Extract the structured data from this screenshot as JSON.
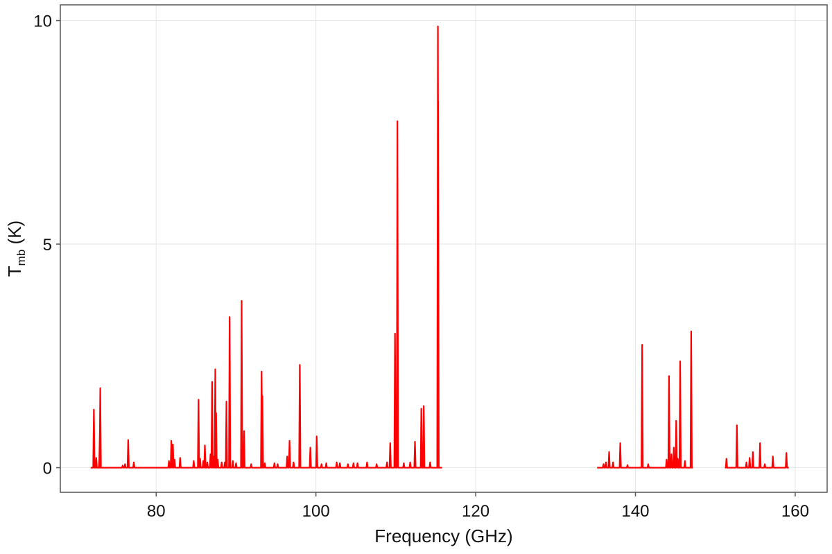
{
  "chart_data": {
    "type": "line",
    "title": "",
    "xlabel": "Frequency (GHz)",
    "ylabel": {
      "main": "T",
      "sub": "mb",
      "unit": " (K)"
    },
    "xlim": [
      68,
      164
    ],
    "ylim": [
      -0.55,
      10.35
    ],
    "x_ticks": [
      80,
      100,
      120,
      140,
      160
    ],
    "y_ticks": [
      0,
      5,
      10
    ],
    "x_tick_labels": [
      "80",
      "100",
      "120",
      "140",
      "160"
    ],
    "y_tick_labels": [
      "0",
      "5",
      "10"
    ],
    "grid": true,
    "color": "#ff0000",
    "segments": [
      [
        71.8,
        115.8
      ],
      [
        135.2,
        147.2
      ],
      [
        151.2,
        159.2
      ]
    ],
    "lines": [
      [
        72.2,
        1.3
      ],
      [
        72.5,
        0.22
      ],
      [
        72.9,
        0.25
      ],
      [
        73.0,
        1.78
      ],
      [
        72.95,
        0.8
      ],
      [
        75.8,
        0.05
      ],
      [
        76.1,
        0.08
      ],
      [
        76.5,
        0.62
      ],
      [
        77.2,
        0.12
      ],
      [
        81.6,
        0.15
      ],
      [
        81.9,
        0.6
      ],
      [
        82.1,
        0.52
      ],
      [
        82.3,
        0.18
      ],
      [
        83.0,
        0.22
      ],
      [
        84.7,
        0.15
      ],
      [
        85.3,
        1.52
      ],
      [
        85.5,
        0.2
      ],
      [
        85.9,
        0.15
      ],
      [
        86.1,
        0.5
      ],
      [
        86.4,
        0.12
      ],
      [
        86.8,
        0.3
      ],
      [
        87.0,
        1.92
      ],
      [
        87.2,
        0.25
      ],
      [
        87.4,
        2.2
      ],
      [
        87.5,
        1.22
      ],
      [
        87.7,
        0.18
      ],
      [
        88.2,
        0.12
      ],
      [
        88.6,
        0.12
      ],
      [
        88.8,
        1.48
      ],
      [
        89.2,
        3.37
      ],
      [
        89.6,
        0.15
      ],
      [
        90.0,
        0.1
      ],
      [
        90.7,
        3.73
      ],
      [
        91.0,
        0.82
      ],
      [
        91.9,
        0.08
      ],
      [
        93.2,
        2.15
      ],
      [
        93.3,
        1.6
      ],
      [
        93.6,
        0.1
      ],
      [
        94.8,
        0.1
      ],
      [
        95.2,
        0.08
      ],
      [
        96.4,
        0.25
      ],
      [
        96.7,
        0.6
      ],
      [
        97.2,
        0.12
      ],
      [
        97.98,
        2.3
      ],
      [
        99.3,
        0.45
      ],
      [
        100.1,
        0.7
      ],
      [
        100.7,
        0.08
      ],
      [
        101.3,
        0.1
      ],
      [
        102.6,
        0.12
      ],
      [
        103.0,
        0.1
      ],
      [
        104.0,
        0.08
      ],
      [
        104.7,
        0.1
      ],
      [
        105.2,
        0.1
      ],
      [
        106.4,
        0.12
      ],
      [
        107.6,
        0.08
      ],
      [
        108.9,
        0.12
      ],
      [
        109.3,
        0.55
      ],
      [
        109.9,
        3.0
      ],
      [
        110.2,
        7.75
      ],
      [
        111.0,
        0.1
      ],
      [
        111.8,
        0.12
      ],
      [
        112.4,
        0.58
      ],
      [
        113.2,
        1.32
      ],
      [
        113.5,
        1.38
      ],
      [
        114.3,
        0.12
      ],
      [
        115.27,
        9.87
      ],
      [
        115.3,
        8.2
      ],
      [
        136.0,
        0.08
      ],
      [
        136.3,
        0.12
      ],
      [
        136.7,
        0.35
      ],
      [
        137.2,
        0.12
      ],
      [
        138.1,
        0.55
      ],
      [
        139.0,
        0.06
      ],
      [
        140.84,
        2.75
      ],
      [
        141.6,
        0.08
      ],
      [
        143.9,
        0.18
      ],
      [
        144.2,
        2.05
      ],
      [
        144.5,
        0.3
      ],
      [
        144.8,
        0.45
      ],
      [
        145.1,
        1.05
      ],
      [
        145.3,
        0.2
      ],
      [
        145.6,
        2.38
      ],
      [
        146.2,
        0.15
      ],
      [
        146.98,
        3.05
      ],
      [
        151.4,
        0.2
      ],
      [
        152.7,
        0.95
      ],
      [
        153.9,
        0.12
      ],
      [
        154.3,
        0.22
      ],
      [
        154.7,
        0.35
      ],
      [
        155.6,
        0.55
      ],
      [
        156.2,
        0.08
      ],
      [
        157.2,
        0.25
      ],
      [
        158.9,
        0.33
      ]
    ]
  }
}
